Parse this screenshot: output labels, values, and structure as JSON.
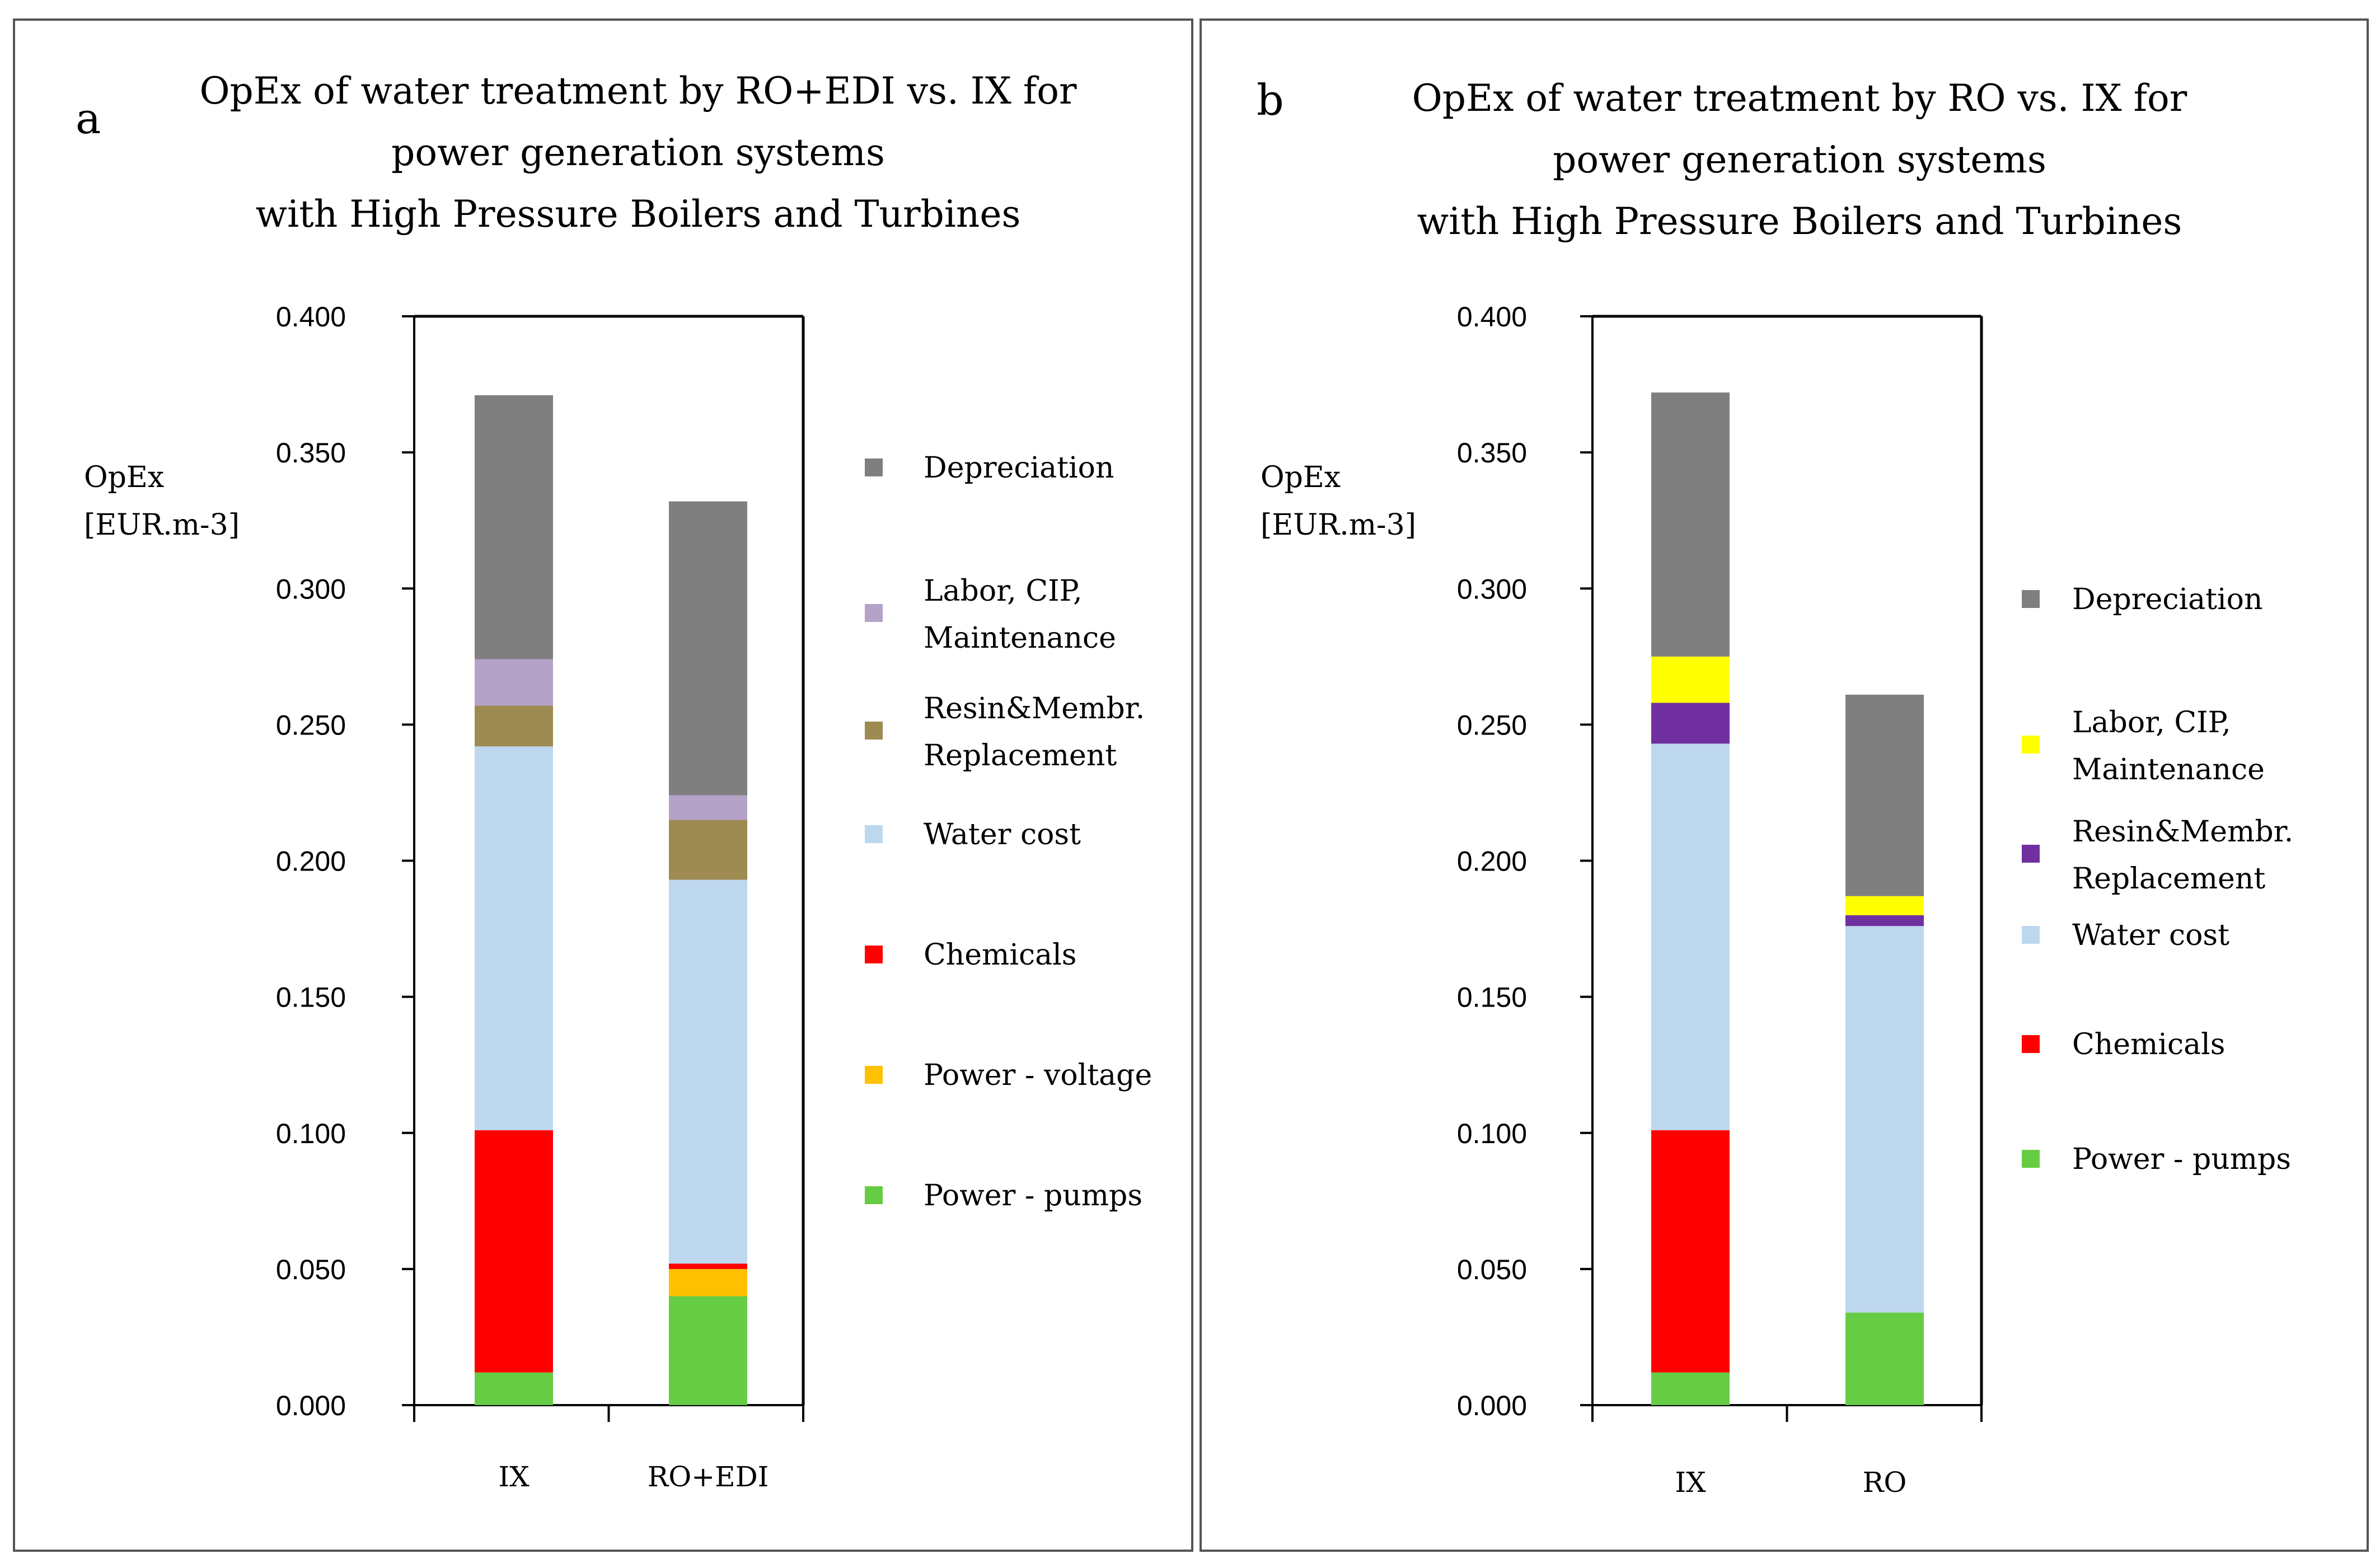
{
  "chart_data": [
    {
      "type": "bar",
      "stacked": true,
      "panel_label": "a",
      "title_lines": [
        "OpEx of water treatment by RO+EDI vs. IX for",
        "power generation systems",
        "with High Pressure Boilers and Turbines"
      ],
      "ylabel_lines": [
        "OpEx",
        "[EUR.m-3]"
      ],
      "xlabel": "",
      "ylim": [
        0,
        0.4
      ],
      "yticks": [
        "0.000",
        "0.050",
        "0.100",
        "0.150",
        "0.200",
        "0.250",
        "0.300",
        "0.350",
        "0.400"
      ],
      "grid": false,
      "legend_position": "right",
      "categories": [
        "IX",
        "RO+EDI"
      ],
      "series": [
        {
          "name": "Power - pumps",
          "color": "#66cc44",
          "values": [
            0.012,
            0.04
          ]
        },
        {
          "name": "Power - voltage",
          "color": "#ffc000",
          "values": [
            0.0,
            0.01
          ]
        },
        {
          "name": "Chemicals",
          "color": "#ff0000",
          "values": [
            0.089,
            0.002
          ]
        },
        {
          "name": "Water cost",
          "color": "#bdd7ee",
          "values": [
            0.141,
            0.141
          ]
        },
        {
          "name": "Resin&Membr. Replacement",
          "color": "#9d8b52",
          "values": [
            0.015,
            0.022
          ]
        },
        {
          "name": "Labor, CIP, Maintenance",
          "color": "#b4a2c8",
          "values": [
            0.017,
            0.009
          ]
        },
        {
          "name": "Depreciation",
          "color": "#7f7f7f",
          "values": [
            0.097,
            0.108
          ]
        }
      ],
      "legend": [
        {
          "lines": [
            "Depreciation"
          ],
          "color": "#7f7f7f"
        },
        {
          "lines": [
            "Labor, CIP,",
            "Maintenance"
          ],
          "color": "#b4a2c8"
        },
        {
          "lines": [
            "Resin&Membr.",
            "Replacement"
          ],
          "color": "#9d8b52"
        },
        {
          "lines": [
            "Water cost"
          ],
          "color": "#bdd7ee"
        },
        {
          "lines": [
            "Chemicals"
          ],
          "color": "#ff0000"
        },
        {
          "lines": [
            "Power - voltage"
          ],
          "color": "#ffc000"
        },
        {
          "lines": [
            "Power - pumps"
          ],
          "color": "#66cc44"
        }
      ]
    },
    {
      "type": "bar",
      "stacked": true,
      "panel_label": "b",
      "title_lines": [
        "OpEx of water treatment by RO vs. IX for",
        "power generation systems",
        "with High Pressure Boilers and Turbines"
      ],
      "ylabel_lines": [
        "OpEx",
        "[EUR.m-3]"
      ],
      "xlabel": "",
      "ylim": [
        0,
        0.4
      ],
      "yticks": [
        "0.000",
        "0.050",
        "0.100",
        "0.150",
        "0.200",
        "0.250",
        "0.300",
        "0.350",
        "0.400"
      ],
      "grid": false,
      "legend_position": "right",
      "categories": [
        "IX",
        "RO"
      ],
      "series": [
        {
          "name": "Power - pumps",
          "color": "#66cc44",
          "values": [
            0.012,
            0.034
          ]
        },
        {
          "name": "Chemicals",
          "color": "#ff0000",
          "values": [
            0.089,
            0.0
          ]
        },
        {
          "name": "Water cost",
          "color": "#bdd7ee",
          "values": [
            0.142,
            0.142
          ]
        },
        {
          "name": "Resin&Membr. Replacement",
          "color": "#7030a0",
          "values": [
            0.015,
            0.004
          ]
        },
        {
          "name": "Labor, CIP, Maintenance",
          "color": "#ffff00",
          "values": [
            0.017,
            0.007
          ]
        },
        {
          "name": "Depreciation",
          "color": "#7f7f7f",
          "values": [
            0.097,
            0.074
          ]
        }
      ],
      "legend": [
        {
          "lines": [
            "Depreciation"
          ],
          "color": "#7f7f7f"
        },
        {
          "lines": [
            "Labor, CIP,",
            "Maintenance"
          ],
          "color": "#ffff00"
        },
        {
          "lines": [
            "Resin&Membr.",
            "Replacement"
          ],
          "color": "#7030a0"
        },
        {
          "lines": [
            "Water cost"
          ],
          "color": "#bdd7ee"
        },
        {
          "lines": [
            "Chemicals"
          ],
          "color": "#ff0000"
        },
        {
          "lines": [
            "Power - pumps"
          ],
          "color": "#66cc44"
        }
      ]
    }
  ]
}
